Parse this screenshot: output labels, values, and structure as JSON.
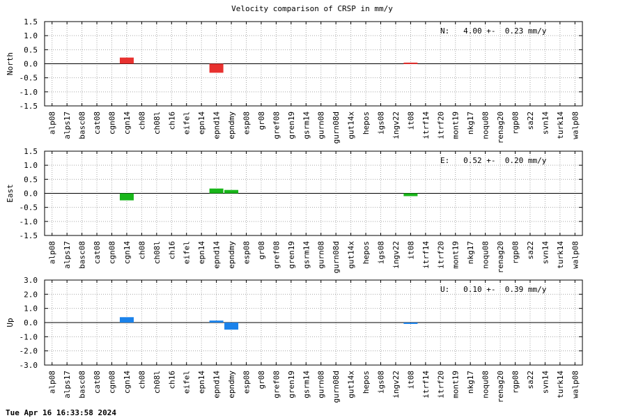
{
  "title": "Velocity comparison of CRSP in mm/y",
  "footer": "Tue Apr 16 16:33:58 2024",
  "colors": {
    "north": "#e8312f",
    "east": "#19b61a",
    "up": "#1b82ea"
  },
  "chart_data": [
    {
      "type": "bar",
      "ylabel": "North",
      "annotation": "N:   4.00 +-  0.23 mm/y",
      "ylim": [
        -1.5,
        1.5
      ],
      "yticks": [
        "1.5",
        "1.0",
        "0.5",
        "0.0",
        "-0.5",
        "-1.0",
        "-1.5"
      ],
      "grid": true,
      "categories": [
        "alp08",
        "alps17",
        "basc08",
        "cat08",
        "cgn08",
        "cgn14",
        "ch08",
        "ch08l",
        "ch16",
        "eifel",
        "epn14",
        "epnd14",
        "epndmy",
        "esp08",
        "gr08",
        "gref08",
        "gren19",
        "gsrm14",
        "gurn08",
        "gurn08d",
        "gut14x",
        "hepos",
        "igs08",
        "ingv22",
        "it08",
        "itrf14",
        "itrf20",
        "mont19",
        "nkg17",
        "noqu08",
        "renag20",
        "rgp08",
        "sa22",
        "svn14",
        "turk14",
        "walp08"
      ],
      "values": [
        0,
        0,
        0,
        0,
        0,
        0.22,
        0,
        0,
        0,
        0,
        0,
        -0.32,
        0,
        0,
        0,
        0,
        0,
        0,
        0,
        0,
        0,
        0,
        0,
        0,
        0.04,
        0,
        0,
        0,
        0,
        0,
        0,
        0,
        0,
        0,
        0,
        0
      ]
    },
    {
      "type": "bar",
      "ylabel": "East",
      "annotation": "E:   0.52 +-  0.20 mm/y",
      "ylim": [
        -1.5,
        1.5
      ],
      "yticks": [
        "1.5",
        "1.0",
        "0.5",
        "0.0",
        "-0.5",
        "-1.0",
        "-1.5"
      ],
      "grid": true,
      "categories": [
        "alp08",
        "alps17",
        "basc08",
        "cat08",
        "cgn08",
        "cgn14",
        "ch08",
        "ch08l",
        "ch16",
        "eifel",
        "epn14",
        "epnd14",
        "epndmy",
        "esp08",
        "gr08",
        "gref08",
        "gren19",
        "gsrm14",
        "gurn08",
        "gurn08d",
        "gut14x",
        "hepos",
        "igs08",
        "ingv22",
        "it08",
        "itrf14",
        "itrf20",
        "mont19",
        "nkg17",
        "noqu08",
        "renag20",
        "rgp08",
        "sa22",
        "svn14",
        "turk14",
        "walp08"
      ],
      "values": [
        0,
        0,
        0,
        0,
        0,
        -0.25,
        0,
        0,
        0,
        0,
        0,
        0.17,
        0.12,
        0,
        0,
        0,
        0,
        0,
        0,
        0,
        0,
        0,
        0,
        0,
        -0.1,
        0,
        0,
        0,
        0,
        0,
        0,
        0,
        0,
        0,
        0,
        0
      ]
    },
    {
      "type": "bar",
      "ylabel": "Up",
      "annotation": "U:   0.10 +-  0.39 mm/y",
      "ylim": [
        -3,
        3
      ],
      "yticks": [
        "3.0",
        "2.0",
        "1.0",
        "0.0",
        "-1.0",
        "-2.0",
        "-3.0"
      ],
      "grid": true,
      "categories": [
        "alp08",
        "alps17",
        "basc08",
        "cat08",
        "cgn08",
        "cgn14",
        "ch08",
        "ch08l",
        "ch16",
        "eifel",
        "epn14",
        "epnd14",
        "epndmy",
        "esp08",
        "gr08",
        "gref08",
        "gren19",
        "gsrm14",
        "gurn08",
        "gurn08d",
        "gut14x",
        "hepos",
        "igs08",
        "ingv22",
        "it08",
        "itrf14",
        "itrf20",
        "mont19",
        "nkg17",
        "noqu08",
        "renag20",
        "rgp08",
        "sa22",
        "svn14",
        "turk14",
        "walp08"
      ],
      "values": [
        0,
        0,
        0,
        0,
        0,
        0.38,
        0,
        0,
        0,
        0,
        0,
        0.14,
        -0.5,
        0,
        0,
        0,
        0,
        0,
        0,
        0,
        0,
        0,
        0,
        0,
        -0.08,
        0,
        0,
        0,
        0,
        0,
        0,
        0,
        0,
        0,
        0,
        0
      ]
    }
  ]
}
